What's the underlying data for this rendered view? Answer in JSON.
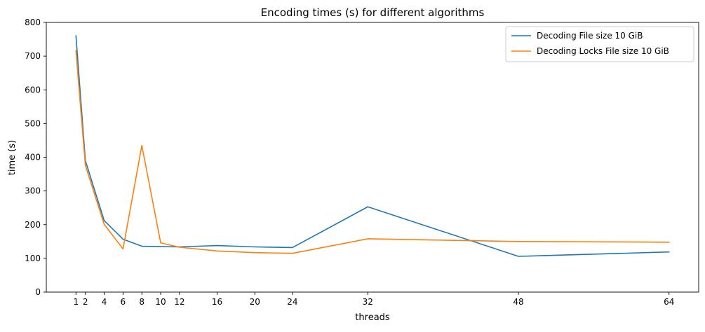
{
  "chart_data": {
    "type": "line",
    "title": "Encoding times (s) for different algorithms",
    "xlabel": "threads",
    "ylabel": "time (s)",
    "x": [
      1,
      2,
      4,
      6,
      8,
      10,
      12,
      16,
      20,
      24,
      32,
      48,
      64
    ],
    "xticks": [
      1,
      2,
      4,
      6,
      8,
      10,
      12,
      16,
      20,
      24,
      32,
      48,
      64
    ],
    "yticks": [
      0,
      100,
      200,
      300,
      400,
      500,
      600,
      700,
      800
    ],
    "xlim": [
      -2.15,
      67.15
    ],
    "ylim": [
      0,
      800
    ],
    "grid": false,
    "legend_position": "top-right",
    "series": [
      {
        "name": "Decoding File size 10 GiB",
        "color": "#1f77b4",
        "values": [
          760,
          390,
          212,
          157,
          136,
          135,
          134,
          138,
          134,
          132,
          253,
          106,
          119
        ]
      },
      {
        "name": "Decoding Locks File size 10 GiB",
        "color": "#ff7f0e",
        "values": [
          716,
          376,
          201,
          128,
          435,
          146,
          133,
          122,
          117,
          115,
          158,
          150,
          148
        ]
      }
    ]
  }
}
